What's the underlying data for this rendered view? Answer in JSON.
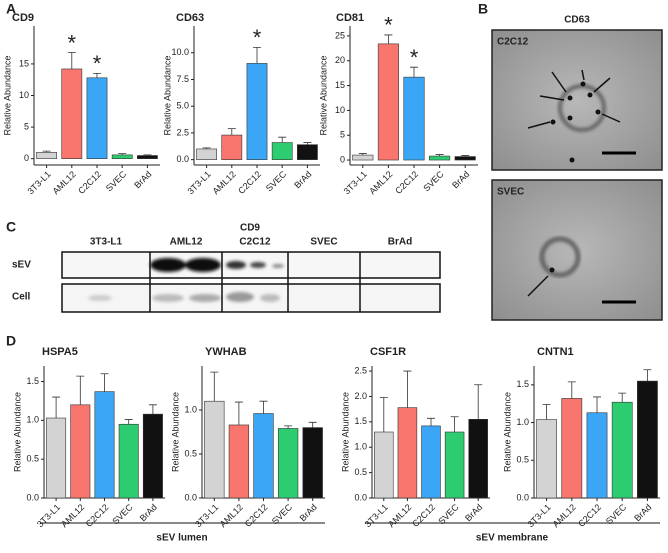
{
  "panel_labels": [
    "A",
    "B",
    "C",
    "D"
  ],
  "chart_data": [
    {
      "type": "bar",
      "title": "CD9",
      "y_label": "Relative Abundance",
      "categories": [
        "3T3-L1",
        "AML12",
        "C2C12",
        "SVEC",
        "BrAd"
      ],
      "values": [
        1.0,
        14.2,
        12.8,
        0.6,
        0.5
      ],
      "errors": [
        0.2,
        2.6,
        0.7,
        0.2,
        0.1
      ],
      "star_labels": [
        null,
        "*",
        "*",
        null,
        null
      ],
      "colors": [
        "#d3d3d3",
        "#f8766d",
        "#3aa6f5",
        "#2ecc71",
        "#111111"
      ],
      "ylim": [
        -1,
        21
      ],
      "yticks": [
        0,
        5,
        10,
        15
      ]
    },
    {
      "type": "bar",
      "title": "CD63",
      "y_label": "Relative Abundance",
      "categories": [
        "3T3-L1",
        "AML12",
        "C2C12",
        "SVEC",
        "BrAd"
      ],
      "values": [
        1.0,
        2.3,
        9.0,
        1.6,
        1.4
      ],
      "errors": [
        0.1,
        0.6,
        1.5,
        0.5,
        0.2
      ],
      "star_labels": [
        null,
        null,
        "*",
        null,
        null
      ],
      "colors": [
        "#d3d3d3",
        "#f8766d",
        "#3aa6f5",
        "#2ecc71",
        "#111111"
      ],
      "ylim": [
        -0.5,
        12.5
      ],
      "yticks": [
        {
          "value": 0,
          "label": "0.0"
        },
        2.5,
        {
          "value": 5,
          "label": "5.0"
        },
        7.5,
        {
          "value": 10,
          "label": "10.0"
        }
      ]
    },
    {
      "type": "bar",
      "title": "CD81",
      "y_label": "Relative Abundance",
      "categories": [
        "3T3-L1",
        "AML12",
        "C2C12",
        "SVEC",
        "BrAd"
      ],
      "values": [
        1.0,
        23.4,
        16.7,
        0.8,
        0.7
      ],
      "errors": [
        0.3,
        1.8,
        2.0,
        0.3,
        0.2
      ],
      "star_labels": [
        null,
        "*",
        "*",
        null,
        null
      ],
      "colors": [
        "#d3d3d3",
        "#f8766d",
        "#3aa6f5",
        "#2ecc71",
        "#111111"
      ],
      "ylim": [
        -1,
        27
      ],
      "yticks": [
        0,
        5,
        10,
        15,
        20,
        25
      ]
    },
    {
      "type": "bar",
      "title": "HSPA5",
      "y_label": "Relative Abundance",
      "categories": [
        "3T3-L1",
        "AML12",
        "C2C12",
        "SVEC",
        "BrAd"
      ],
      "values": [
        1.03,
        1.2,
        1.37,
        0.95,
        1.08
      ],
      "errors": [
        0.27,
        0.37,
        0.23,
        0.06,
        0.12
      ],
      "colors": [
        "#d3d3d3",
        "#f8766d",
        "#3aa6f5",
        "#2ecc71",
        "#111111"
      ],
      "ylim": [
        0,
        1.7
      ],
      "yticks": [
        {
          "value": 0,
          "label": "0.0"
        },
        0.5,
        {
          "value": 1,
          "label": "1.0"
        },
        1.5
      ]
    },
    {
      "type": "bar",
      "title": "YWHAB",
      "y_label": "Relative Abundance",
      "categories": [
        "3T3-L1",
        "AML12",
        "C2C12",
        "SVEC",
        "BrAd"
      ],
      "values": [
        1.1,
        0.83,
        0.96,
        0.79,
        0.8
      ],
      "errors": [
        0.33,
        0.26,
        0.14,
        0.03,
        0.06
      ],
      "colors": [
        "#d3d3d3",
        "#f8766d",
        "#3aa6f5",
        "#2ecc71",
        "#111111"
      ],
      "ylim": [
        0,
        1.5
      ],
      "yticks": [
        {
          "value": 0,
          "label": "0.0"
        },
        0.5,
        {
          "value": 1,
          "label": "1.0"
        }
      ]
    },
    {
      "type": "bar",
      "title": "CSF1R",
      "y_label": "Relative Abundance",
      "categories": [
        "3T3-L1",
        "AML12",
        "C2C12",
        "SVEC",
        "BrAd"
      ],
      "values": [
        1.3,
        1.78,
        1.42,
        1.3,
        1.55
      ],
      "errors": [
        0.68,
        0.72,
        0.15,
        0.3,
        0.68
      ],
      "colors": [
        "#d3d3d3",
        "#f8766d",
        "#3aa6f5",
        "#2ecc71",
        "#111111"
      ],
      "ylim": [
        0,
        2.6
      ],
      "yticks": [
        {
          "value": 0,
          "label": "0.0"
        },
        0.5,
        {
          "value": 1,
          "label": "1.0"
        },
        1.5,
        {
          "value": 2,
          "label": "2.0"
        },
        2.5
      ]
    },
    {
      "type": "bar",
      "title": "CNTN1",
      "y_label": "Relative Abundance",
      "categories": [
        "3T3-L1",
        "AML12",
        "C2C12",
        "SVEC",
        "BrAd"
      ],
      "values": [
        1.04,
        1.32,
        1.13,
        1.27,
        1.55
      ],
      "errors": [
        0.2,
        0.22,
        0.21,
        0.12,
        0.15
      ],
      "colors": [
        "#d3d3d3",
        "#f8766d",
        "#3aa6f5",
        "#2ecc71",
        "#111111"
      ],
      "ylim": [
        0,
        1.75
      ],
      "yticks": [
        {
          "value": 0,
          "label": "0.0"
        },
        0.5,
        {
          "value": 1,
          "label": "1.0"
        },
        1.5
      ]
    }
  ],
  "em": {
    "title": "CD63",
    "images": [
      "C2C12",
      "SVEC"
    ]
  },
  "blot": {
    "title": "CD9",
    "lanes": [
      "3T3-L1",
      "AML12",
      "C2C12",
      "SVEC",
      "BrAd"
    ],
    "rows": [
      "sEV",
      "Cell"
    ]
  },
  "groups": [
    "sEV lumen",
    "sEV membrane"
  ]
}
